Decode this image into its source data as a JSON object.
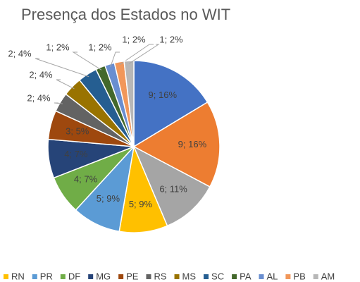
{
  "chart_data": {
    "type": "pie",
    "title": "Presença dos Estados no WIT",
    "categories": [
      null,
      null,
      null,
      "RN",
      "PR",
      "DF",
      "MG",
      "PE",
      "RS",
      "MS",
      "SC",
      "PA",
      "AL",
      "PB",
      "AM"
    ],
    "values": [
      9,
      9,
      6,
      5,
      5,
      4,
      4,
      3,
      2,
      2,
      2,
      1,
      1,
      1,
      1
    ],
    "value_labels": [
      "9; 16%",
      "9; 16%",
      "6; 11%",
      "5; 9%",
      "5; 9%",
      "4; 7%",
      "4; 7%",
      "3; 5%",
      "2; 4%",
      "2; 4%",
      "2; 4%",
      "1; 2%",
      "1; 2%",
      "1; 2%",
      "1; 2%"
    ],
    "colors": [
      "#4472c4",
      "#ed7d31",
      "#a5a5a5",
      "#ffc000",
      "#5b9bd5",
      "#70ad47",
      "#264478",
      "#9e480e",
      "#636363",
      "#997300",
      "#255e91",
      "#43682b",
      "#698ed0",
      "#f1975a",
      "#b7b7b7"
    ],
    "legend": "bottom"
  }
}
